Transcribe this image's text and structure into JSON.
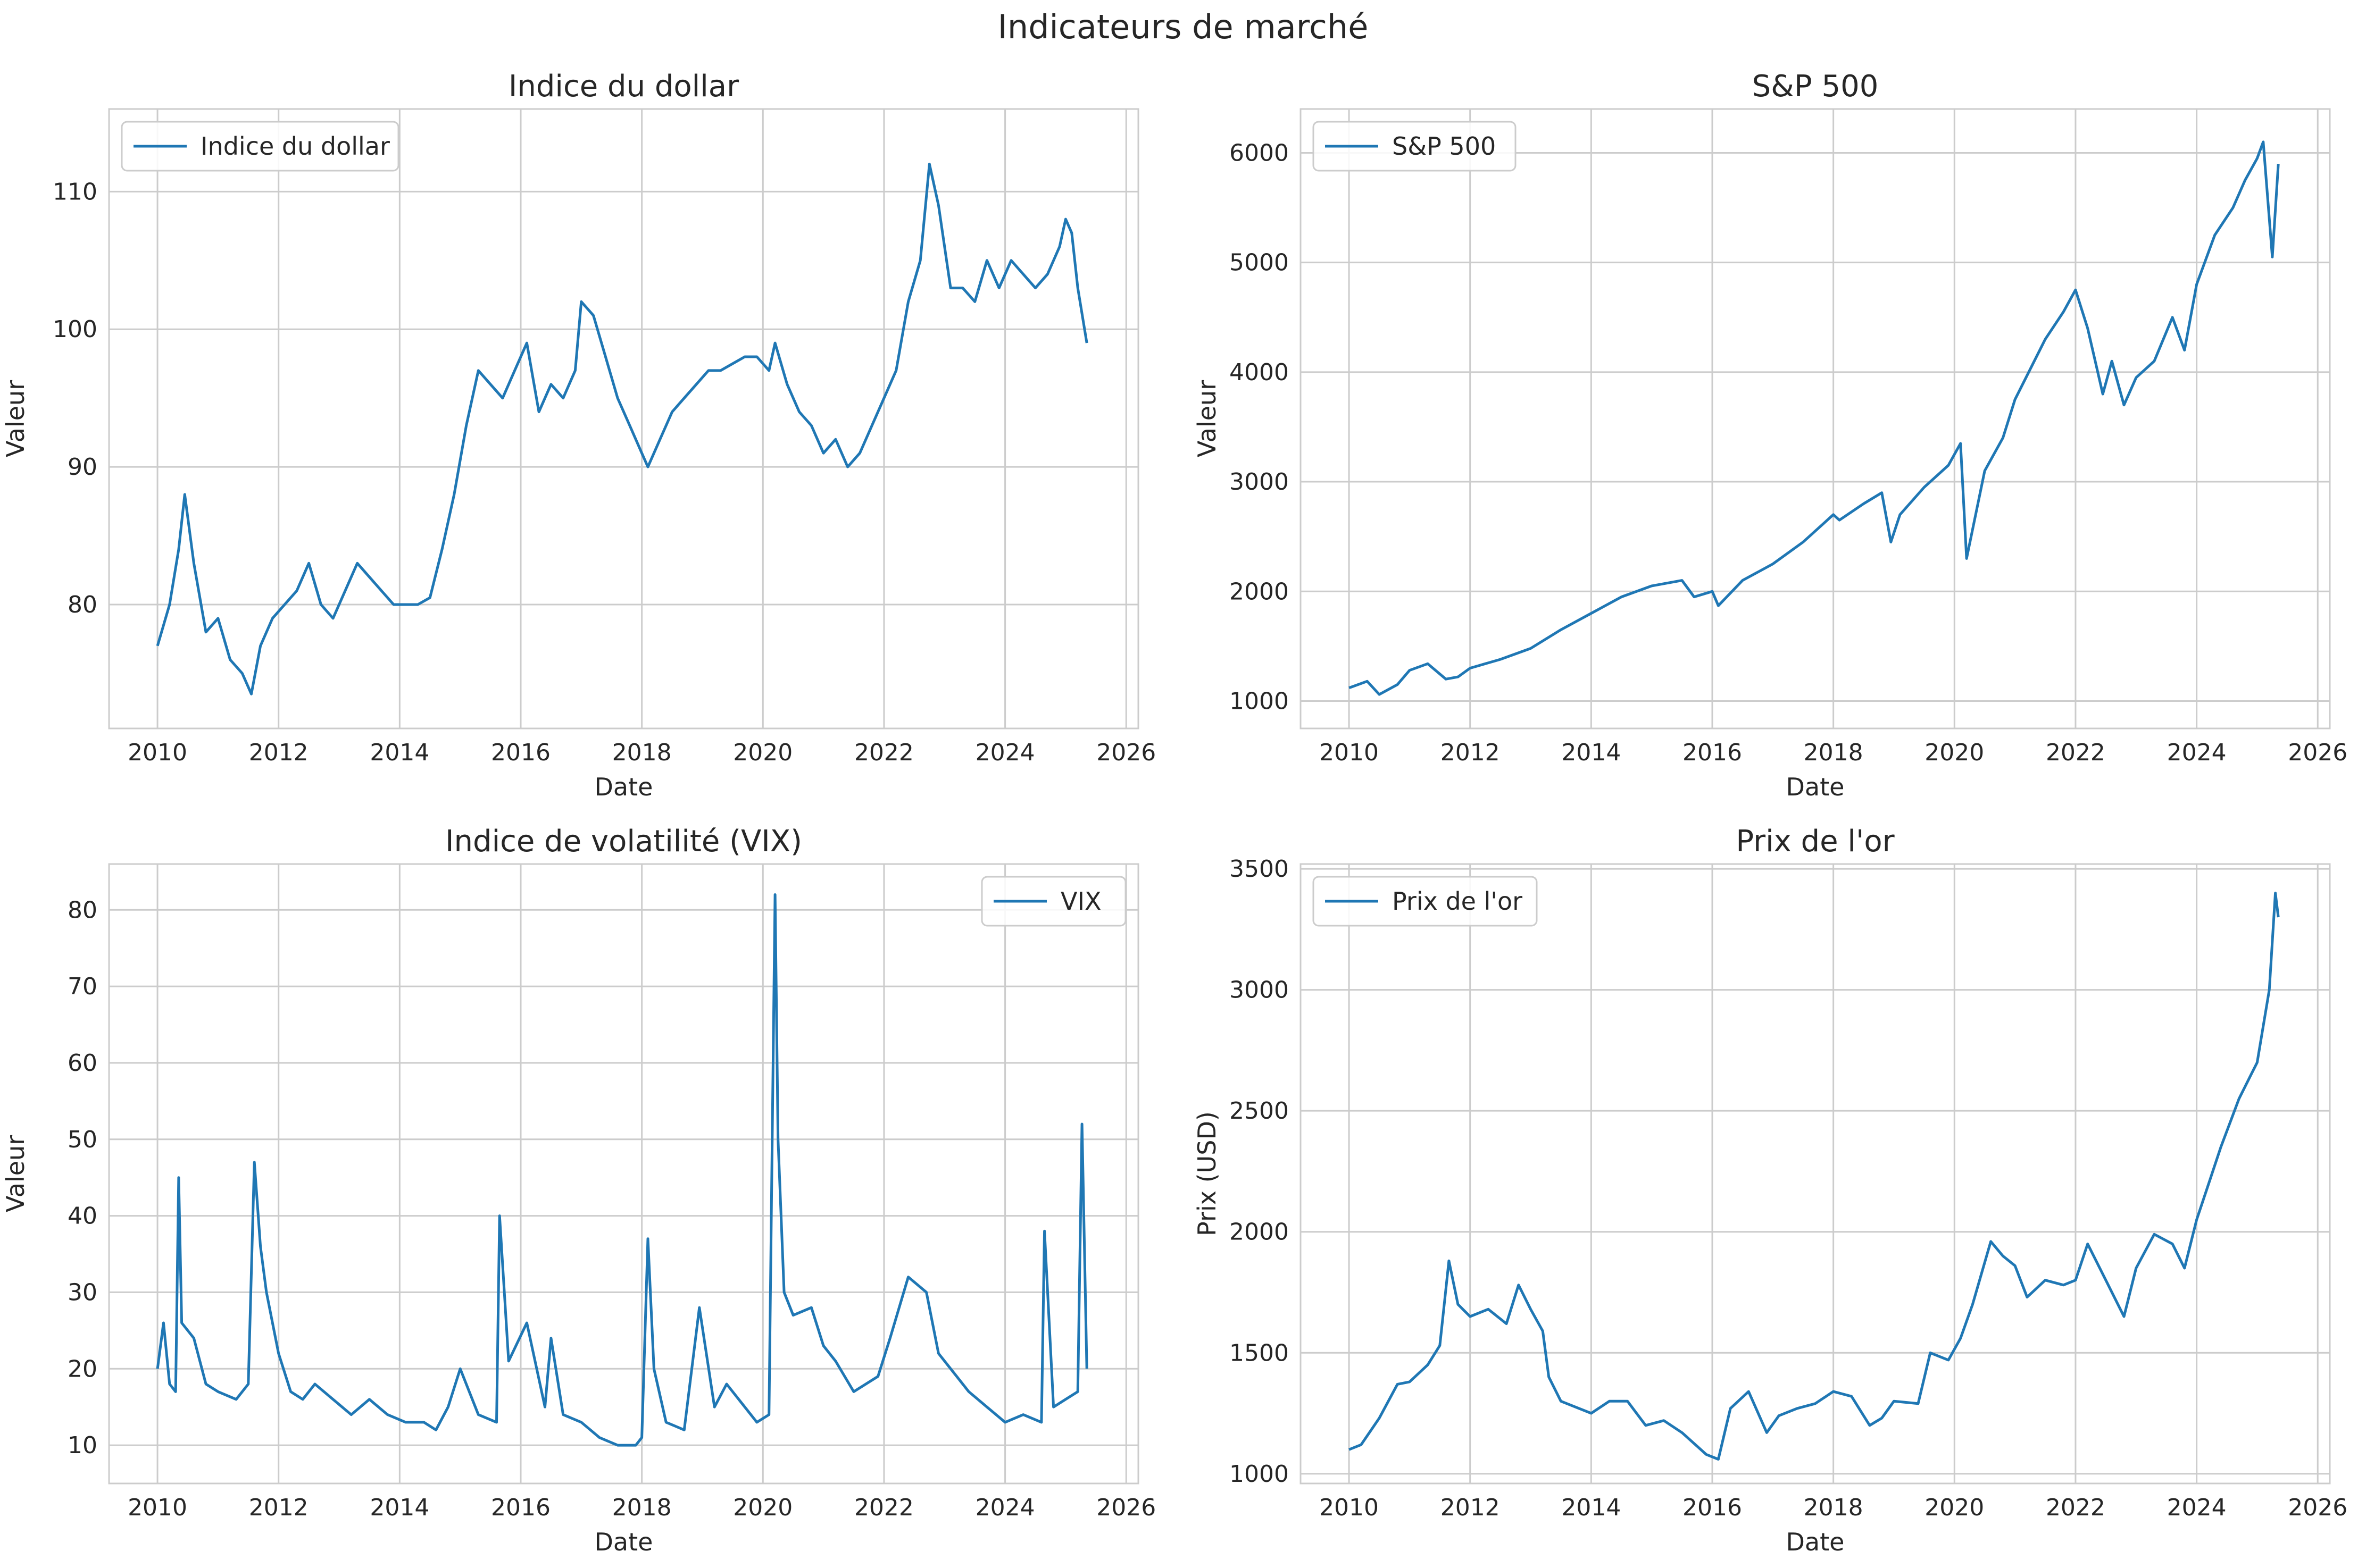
{
  "figure": {
    "title": "Indicateurs de marché"
  },
  "colors": {
    "line": "#1f77b4",
    "grid": "#cccccc",
    "axes_edge": "#cccccc",
    "text": "#262626"
  },
  "chart_data": [
    {
      "id": "dollar",
      "type": "line",
      "title": "Indice du dollar",
      "xlabel": "Date",
      "ylabel": "Valeur",
      "xlim": [
        2009.2,
        2026.2
      ],
      "ylim": [
        71,
        116
      ],
      "xticks": [
        2010,
        2012,
        2014,
        2016,
        2018,
        2020,
        2022,
        2024,
        2026
      ],
      "yticks": [
        80,
        90,
        100,
        110
      ],
      "grid": true,
      "legend": "upper left",
      "series": [
        {
          "name": "Indice du dollar",
          "x": [
            2010.0,
            2010.2,
            2010.35,
            2010.45,
            2010.6,
            2010.8,
            2011.0,
            2011.2,
            2011.4,
            2011.55,
            2011.7,
            2011.9,
            2012.1,
            2012.3,
            2012.5,
            2012.7,
            2012.9,
            2013.1,
            2013.3,
            2013.5,
            2013.7,
            2013.9,
            2014.1,
            2014.3,
            2014.5,
            2014.7,
            2014.9,
            2015.1,
            2015.3,
            2015.5,
            2015.7,
            2015.9,
            2016.1,
            2016.3,
            2016.5,
            2016.7,
            2016.9,
            2017.0,
            2017.2,
            2017.4,
            2017.6,
            2017.8,
            2018.0,
            2018.1,
            2018.3,
            2018.5,
            2018.7,
            2018.9,
            2019.1,
            2019.3,
            2019.5,
            2019.7,
            2019.9,
            2020.1,
            2020.2,
            2020.4,
            2020.6,
            2020.8,
            2021.0,
            2021.2,
            2021.4,
            2021.6,
            2021.8,
            2022.0,
            2022.2,
            2022.4,
            2022.6,
            2022.75,
            2022.9,
            2023.1,
            2023.3,
            2023.5,
            2023.7,
            2023.9,
            2024.1,
            2024.3,
            2024.5,
            2024.7,
            2024.9,
            2025.0,
            2025.1,
            2025.2,
            2025.35
          ],
          "values": [
            77,
            80,
            84,
            88,
            83,
            78,
            79,
            76,
            75,
            73.5,
            77,
            79,
            80,
            81,
            83,
            80,
            79,
            81,
            83,
            82,
            81,
            80,
            80,
            80,
            80.5,
            84,
            88,
            93,
            97,
            96,
            95,
            97,
            99,
            94,
            96,
            95,
            97,
            102,
            101,
            98,
            95,
            93,
            91,
            90,
            92,
            94,
            95,
            96,
            97,
            97,
            97.5,
            98,
            98,
            97,
            99,
            96,
            94,
            93,
            91,
            92,
            90,
            91,
            93,
            95,
            97,
            102,
            105,
            112,
            109,
            103,
            103,
            102,
            105,
            103,
            105,
            104,
            103,
            104,
            106,
            108,
            107,
            103,
            99
          ]
        }
      ]
    },
    {
      "id": "sp500",
      "type": "line",
      "title": "S&P 500",
      "xlabel": "Date",
      "ylabel": "Valeur",
      "xlim": [
        2009.2,
        2026.2
      ],
      "ylim": [
        750,
        6400
      ],
      "xticks": [
        2010,
        2012,
        2014,
        2016,
        2018,
        2020,
        2022,
        2024,
        2026
      ],
      "yticks": [
        1000,
        2000,
        3000,
        4000,
        5000,
        6000
      ],
      "grid": true,
      "legend": "upper left",
      "series": [
        {
          "name": "S&P 500",
          "x": [
            2010.0,
            2010.3,
            2010.5,
            2010.8,
            2011.0,
            2011.3,
            2011.6,
            2011.8,
            2012.0,
            2012.5,
            2013.0,
            2013.5,
            2014.0,
            2014.5,
            2015.0,
            2015.5,
            2015.7,
            2016.0,
            2016.1,
            2016.5,
            2017.0,
            2017.5,
            2018.0,
            2018.1,
            2018.5,
            2018.8,
            2018.95,
            2019.1,
            2019.5,
            2019.9,
            2020.1,
            2020.2,
            2020.5,
            2020.8,
            2021.0,
            2021.5,
            2021.8,
            2022.0,
            2022.2,
            2022.45,
            2022.6,
            2022.8,
            2023.0,
            2023.3,
            2023.6,
            2023.8,
            2024.0,
            2024.3,
            2024.6,
            2024.8,
            2025.0,
            2025.1,
            2025.25,
            2025.35
          ],
          "values": [
            1120,
            1180,
            1060,
            1150,
            1280,
            1340,
            1200,
            1220,
            1300,
            1380,
            1480,
            1650,
            1800,
            1950,
            2050,
            2100,
            1950,
            2000,
            1870,
            2100,
            2250,
            2450,
            2700,
            2650,
            2800,
            2900,
            2450,
            2700,
            2950,
            3150,
            3350,
            2300,
            3100,
            3400,
            3750,
            4300,
            4550,
            4750,
            4400,
            3800,
            4100,
            3700,
            3950,
            4100,
            4500,
            4200,
            4800,
            5250,
            5500,
            5750,
            5950,
            6100,
            5050,
            5900
          ]
        }
      ]
    },
    {
      "id": "vix",
      "type": "line",
      "title": "Indice de volatilité (VIX)",
      "xlabel": "Date",
      "ylabel": "Valeur",
      "xlim": [
        2009.2,
        2026.2
      ],
      "ylim": [
        5,
        86
      ],
      "xticks": [
        2010,
        2012,
        2014,
        2016,
        2018,
        2020,
        2022,
        2024,
        2026
      ],
      "yticks": [
        10,
        20,
        30,
        40,
        50,
        60,
        70,
        80
      ],
      "grid": true,
      "legend": "upper right",
      "series": [
        {
          "name": "VIX",
          "x": [
            2010.0,
            2010.1,
            2010.2,
            2010.3,
            2010.35,
            2010.4,
            2010.6,
            2010.8,
            2011.0,
            2011.3,
            2011.5,
            2011.6,
            2011.7,
            2011.8,
            2012.0,
            2012.2,
            2012.4,
            2012.6,
            2012.9,
            2013.2,
            2013.5,
            2013.8,
            2014.1,
            2014.4,
            2014.6,
            2014.8,
            2015.0,
            2015.3,
            2015.6,
            2015.65,
            2015.8,
            2016.1,
            2016.4,
            2016.5,
            2016.7,
            2017.0,
            2017.3,
            2017.6,
            2017.9,
            2018.0,
            2018.1,
            2018.2,
            2018.4,
            2018.7,
            2018.95,
            2019.2,
            2019.4,
            2019.6,
            2019.9,
            2020.1,
            2020.2,
            2020.25,
            2020.35,
            2020.5,
            2020.8,
            2021.0,
            2021.2,
            2021.5,
            2021.9,
            2022.1,
            2022.4,
            2022.7,
            2022.9,
            2023.2,
            2023.4,
            2023.7,
            2024.0,
            2024.3,
            2024.6,
            2024.65,
            2024.8,
            2025.0,
            2025.2,
            2025.27,
            2025.35
          ],
          "values": [
            20,
            26,
            18,
            17,
            45,
            26,
            24,
            18,
            17,
            16,
            18,
            47,
            36,
            30,
            22,
            17,
            16,
            18,
            16,
            14,
            16,
            14,
            13,
            13,
            12,
            15,
            20,
            14,
            13,
            40,
            21,
            26,
            15,
            24,
            14,
            13,
            11,
            10,
            10,
            11,
            37,
            20,
            13,
            12,
            28,
            15,
            18,
            16,
            13,
            14,
            82,
            50,
            30,
            27,
            28,
            23,
            21,
            17,
            19,
            24,
            32,
            30,
            22,
            19,
            17,
            15,
            13,
            14,
            13,
            38,
            15,
            16,
            17,
            52,
            20
          ]
        }
      ]
    },
    {
      "id": "gold",
      "type": "line",
      "title": "Prix de l'or",
      "xlabel": "Date",
      "ylabel": "Prix (USD)",
      "xlim": [
        2009.2,
        2026.2
      ],
      "ylim": [
        960,
        3520
      ],
      "xticks": [
        2010,
        2012,
        2014,
        2016,
        2018,
        2020,
        2022,
        2024,
        2026
      ],
      "yticks": [
        1000,
        1500,
        2000,
        2500,
        3000,
        3500
      ],
      "grid": true,
      "legend": "upper left",
      "series": [
        {
          "name": "Prix de l'or",
          "x": [
            2010.0,
            2010.2,
            2010.5,
            2010.8,
            2011.0,
            2011.3,
            2011.5,
            2011.65,
            2011.8,
            2012.0,
            2012.3,
            2012.6,
            2012.8,
            2013.0,
            2013.2,
            2013.3,
            2013.5,
            2013.8,
            2014.0,
            2014.3,
            2014.6,
            2014.9,
            2015.2,
            2015.5,
            2015.9,
            2016.1,
            2016.3,
            2016.6,
            2016.9,
            2017.1,
            2017.4,
            2017.7,
            2018.0,
            2018.3,
            2018.6,
            2018.8,
            2019.0,
            2019.4,
            2019.6,
            2019.9,
            2020.1,
            2020.3,
            2020.6,
            2020.8,
            2021.0,
            2021.2,
            2021.5,
            2021.8,
            2022.0,
            2022.2,
            2022.5,
            2022.8,
            2023.0,
            2023.3,
            2023.6,
            2023.8,
            2024.0,
            2024.2,
            2024.4,
            2024.7,
            2024.9,
            2025.0,
            2025.2,
            2025.3,
            2025.35
          ],
          "values": [
            1100,
            1120,
            1230,
            1370,
            1380,
            1450,
            1530,
            1880,
            1700,
            1650,
            1680,
            1620,
            1780,
            1680,
            1590,
            1400,
            1300,
            1270,
            1250,
            1300,
            1300,
            1200,
            1220,
            1170,
            1080,
            1060,
            1270,
            1340,
            1170,
            1240,
            1270,
            1290,
            1340,
            1320,
            1200,
            1230,
            1300,
            1290,
            1500,
            1470,
            1560,
            1700,
            1960,
            1900,
            1860,
            1730,
            1800,
            1780,
            1800,
            1950,
            1800,
            1650,
            1850,
            1990,
            1950,
            1850,
            2050,
            2200,
            2350,
            2550,
            2650,
            2700,
            3000,
            3400,
            3300
          ]
        }
      ]
    }
  ]
}
